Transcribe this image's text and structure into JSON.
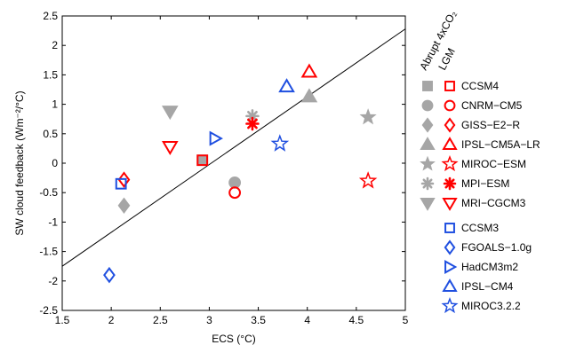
{
  "chart_data": {
    "type": "scatter",
    "xlabel": "ECS (°C)",
    "ylabel": "SW cloud feedback (Wm⁻²/°C)",
    "xlim": [
      1.5,
      5
    ],
    "ylim": [
      -2.5,
      2.5
    ],
    "xticks": [
      "1.5",
      "2",
      "2.5",
      "3",
      "3.5",
      "4",
      "4.5",
      "5"
    ],
    "yticks": [
      "-2.5",
      "-2",
      "-1.5",
      "-1",
      "-0.5",
      "0",
      "0.5",
      "1",
      "1.5",
      "2",
      "2.5"
    ],
    "grid": false,
    "regression_line": {
      "x": [
        1.5,
        5
      ],
      "y": [
        -1.75,
        2.28
      ]
    },
    "legend_headers": [
      "Abrupt 4xCO₂",
      "LGM"
    ],
    "colors": {
      "abrupt": "#a6a6a6",
      "lgm": "#ff0000",
      "cmip3": "#1f4fe0",
      "line": "#000000"
    },
    "paired_models": [
      {
        "name": "CCSM4",
        "marker": "square",
        "abrupt": [
          2.93,
          0.05
        ],
        "lgm": [
          2.93,
          0.05
        ]
      },
      {
        "name": "CNRM−CM5",
        "marker": "circle",
        "abrupt": [
          3.26,
          -0.33
        ],
        "lgm": [
          3.26,
          -0.5
        ]
      },
      {
        "name": "GISS−E2−R",
        "marker": "diamond",
        "abrupt": [
          2.13,
          -0.72
        ],
        "lgm": [
          2.13,
          -0.28
        ]
      },
      {
        "name": "IPSL−CM5A−LR",
        "marker": "triangle-up",
        "abrupt": [
          4.02,
          1.13
        ],
        "lgm": [
          4.02,
          1.55
        ]
      },
      {
        "name": "MIROC−ESM",
        "marker": "star",
        "abrupt": [
          4.62,
          0.78
        ],
        "lgm": [
          4.62,
          -0.3
        ]
      },
      {
        "name": "MPI−ESM",
        "marker": "asterisk",
        "abrupt": [
          3.44,
          0.8
        ],
        "lgm": [
          3.44,
          0.67
        ]
      },
      {
        "name": "MRI−CGCM3",
        "marker": "triangle-down",
        "abrupt": [
          2.6,
          0.88
        ],
        "lgm": [
          2.6,
          0.28
        ]
      }
    ],
    "cmip3_models": [
      {
        "name": "CCSM3",
        "marker": "square",
        "point": [
          2.1,
          -0.35
        ]
      },
      {
        "name": "FGOALS−1.0g",
        "marker": "diamond",
        "point": [
          1.98,
          -1.9
        ]
      },
      {
        "name": "HadCM3m2",
        "marker": "triangle-right",
        "point": [
          3.06,
          0.42
        ]
      },
      {
        "name": "IPSL−CM4",
        "marker": "triangle-up",
        "point": [
          3.79,
          1.3
        ]
      },
      {
        "name": "MIROC3.2.2",
        "marker": "star",
        "point": [
          3.72,
          0.33
        ]
      }
    ]
  }
}
